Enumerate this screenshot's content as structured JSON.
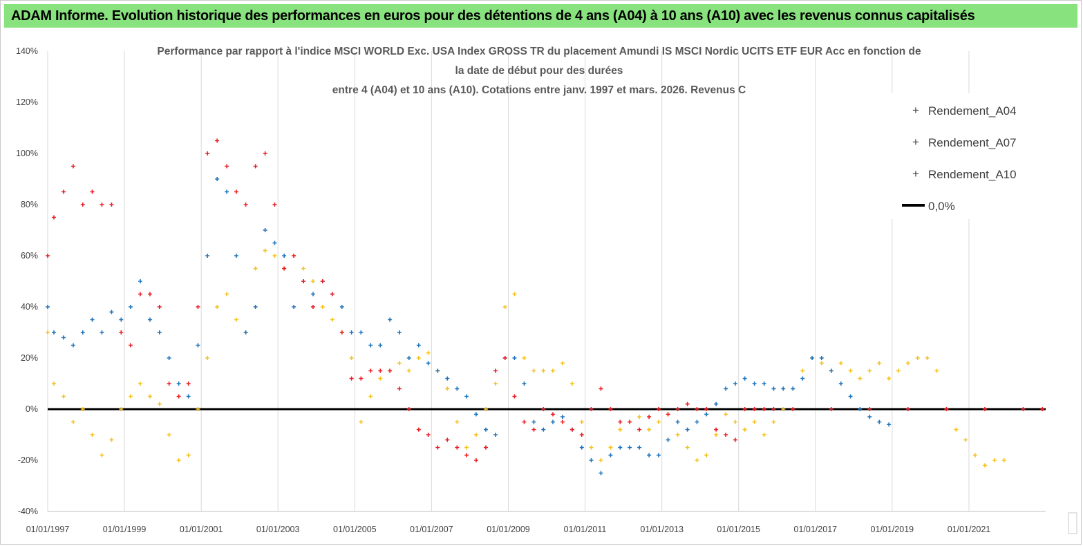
{
  "header": {
    "title": "ADAM Informe. Evolution historique des performances en euros pour des détentions de 4 ans (A04) à 10 ans (A10) avec les revenus connus capitalisés"
  },
  "colors": {
    "banner": "#88e27e",
    "A04": "#f6c21b",
    "A07": "#1e74bc",
    "A10": "#ee1c24",
    "zero_line": "#000000",
    "grid": "#d9d9d9"
  },
  "chart_data": {
    "type": "scatter",
    "title_lines": [
      "Performance par rapport à l'indice MSCI WORLD Exc. USA Index GROSS TR  du placement Amundi IS MSCI Nordic UCITS ETF EUR Acc en fonction de",
      "la date de début pour des durées",
      "entre 4 (A04) et 10 ans (A10). Cotations entre janv. 1997 et mars. 2026. Revenus C"
    ],
    "xlabel": "",
    "ylabel": "",
    "x_range": [
      "1997-01-01",
      "2023-01-01"
    ],
    "x_ticks": [
      "01/01/1997",
      "01/01/1999",
      "01/01/2001",
      "01/01/2003",
      "01/01/2005",
      "01/01/2007",
      "01/01/2009",
      "01/01/2011",
      "01/01/2013",
      "01/01/2015",
      "01/01/2017",
      "01/01/2019",
      "01/01/2021"
    ],
    "ylim": [
      -40,
      140
    ],
    "y_ticks": [
      "-40%",
      "-20%",
      "0%",
      "20%",
      "40%",
      "60%",
      "80%",
      "100%",
      "120%",
      "140%"
    ],
    "grid": "vertical lines only",
    "legend_position": "top-right",
    "marker": "+",
    "series": [
      {
        "name": "Rendement_A04",
        "points": [
          [
            "1997-01-01",
            30
          ],
          [
            "1997-03-01",
            10
          ],
          [
            "1997-06-01",
            5
          ],
          [
            "1997-09-01",
            -5
          ],
          [
            "1997-12-01",
            0
          ],
          [
            "1998-03-01",
            -10
          ],
          [
            "1998-06-01",
            -18
          ],
          [
            "1998-09-01",
            -12
          ],
          [
            "1998-12-01",
            0
          ],
          [
            "1999-03-01",
            5
          ],
          [
            "1999-06-01",
            10
          ],
          [
            "1999-09-01",
            5
          ],
          [
            "1999-12-01",
            2
          ],
          [
            "2000-03-01",
            -10
          ],
          [
            "2000-06-01",
            -20
          ],
          [
            "2000-09-01",
            -18
          ],
          [
            "2000-12-01",
            0
          ],
          [
            "2001-03-01",
            20
          ],
          [
            "2001-06-01",
            40
          ],
          [
            "2001-09-01",
            45
          ],
          [
            "2001-12-01",
            35
          ],
          [
            "2002-03-01",
            30
          ],
          [
            "2002-06-01",
            55
          ],
          [
            "2002-09-01",
            62
          ],
          [
            "2002-12-01",
            60
          ],
          [
            "2003-03-01",
            55
          ],
          [
            "2003-06-01",
            60
          ],
          [
            "2003-09-01",
            55
          ],
          [
            "2003-12-01",
            50
          ],
          [
            "2004-03-01",
            40
          ],
          [
            "2004-06-01",
            35
          ],
          [
            "2004-09-01",
            30
          ],
          [
            "2004-12-01",
            20
          ],
          [
            "2005-03-01",
            -5
          ],
          [
            "2005-06-01",
            5
          ],
          [
            "2005-09-01",
            12
          ],
          [
            "2005-12-01",
            15
          ],
          [
            "2006-03-01",
            18
          ],
          [
            "2006-06-01",
            15
          ],
          [
            "2006-09-01",
            20
          ],
          [
            "2006-12-01",
            22
          ],
          [
            "2007-03-01",
            15
          ],
          [
            "2007-06-01",
            8
          ],
          [
            "2007-09-01",
            -5
          ],
          [
            "2007-12-01",
            -15
          ],
          [
            "2008-03-01",
            -10
          ],
          [
            "2008-06-01",
            0
          ],
          [
            "2008-09-01",
            10
          ],
          [
            "2008-12-01",
            40
          ],
          [
            "2009-03-01",
            45
          ],
          [
            "2009-06-01",
            20
          ],
          [
            "2009-09-01",
            15
          ],
          [
            "2009-12-01",
            15
          ],
          [
            "2010-03-01",
            15
          ],
          [
            "2010-06-01",
            18
          ],
          [
            "2010-09-01",
            10
          ],
          [
            "2010-12-01",
            -5
          ],
          [
            "2011-03-01",
            -15
          ],
          [
            "2011-06-01",
            -20
          ],
          [
            "2011-09-01",
            -15
          ],
          [
            "2011-12-01",
            -8
          ],
          [
            "2012-03-01",
            -5
          ],
          [
            "2012-06-01",
            -3
          ],
          [
            "2012-09-01",
            -8
          ],
          [
            "2012-12-01",
            -5
          ],
          [
            "2013-03-01",
            -2
          ],
          [
            "2013-06-01",
            -10
          ],
          [
            "2013-09-01",
            -15
          ],
          [
            "2013-12-01",
            -20
          ],
          [
            "2014-03-01",
            -18
          ],
          [
            "2014-06-01",
            -10
          ],
          [
            "2014-09-01",
            -2
          ],
          [
            "2014-12-01",
            -5
          ],
          [
            "2015-03-01",
            -8
          ],
          [
            "2015-06-01",
            -5
          ],
          [
            "2015-09-01",
            -10
          ],
          [
            "2015-12-01",
            -5
          ],
          [
            "2016-03-01",
            0
          ],
          [
            "2016-06-01",
            8
          ],
          [
            "2016-09-01",
            15
          ],
          [
            "2016-12-01",
            20
          ],
          [
            "2017-03-01",
            18
          ],
          [
            "2017-06-01",
            15
          ],
          [
            "2017-09-01",
            18
          ],
          [
            "2017-12-01",
            15
          ],
          [
            "2018-03-01",
            12
          ],
          [
            "2018-06-01",
            15
          ],
          [
            "2018-09-01",
            18
          ],
          [
            "2018-12-01",
            12
          ],
          [
            "2019-03-01",
            15
          ],
          [
            "2019-06-01",
            18
          ],
          [
            "2019-09-01",
            20
          ],
          [
            "2019-12-01",
            20
          ],
          [
            "2020-03-01",
            15
          ],
          [
            "2020-06-01",
            0
          ],
          [
            "2020-09-01",
            -8
          ],
          [
            "2020-12-01",
            -12
          ],
          [
            "2021-03-01",
            -18
          ],
          [
            "2021-06-01",
            -22
          ],
          [
            "2021-09-01",
            -20
          ],
          [
            "2021-12-01",
            -20
          ]
        ]
      },
      {
        "name": "Rendement_A07",
        "points": [
          [
            "1997-01-01",
            40
          ],
          [
            "1997-03-01",
            30
          ],
          [
            "1997-06-01",
            28
          ],
          [
            "1997-09-01",
            25
          ],
          [
            "1997-12-01",
            30
          ],
          [
            "1998-03-01",
            35
          ],
          [
            "1998-06-01",
            30
          ],
          [
            "1998-09-01",
            38
          ],
          [
            "1998-12-01",
            35
          ],
          [
            "1999-03-01",
            40
          ],
          [
            "1999-06-01",
            50
          ],
          [
            "1999-09-01",
            35
          ],
          [
            "1999-12-01",
            30
          ],
          [
            "2000-03-01",
            20
          ],
          [
            "2000-06-01",
            10
          ],
          [
            "2000-09-01",
            5
          ],
          [
            "2000-12-01",
            25
          ],
          [
            "2001-03-01",
            60
          ],
          [
            "2001-06-01",
            90
          ],
          [
            "2001-09-01",
            85
          ],
          [
            "2001-12-01",
            60
          ],
          [
            "2002-03-01",
            30
          ],
          [
            "2002-06-01",
            40
          ],
          [
            "2002-09-01",
            70
          ],
          [
            "2002-12-01",
            65
          ],
          [
            "2003-03-01",
            60
          ],
          [
            "2003-06-01",
            40
          ],
          [
            "2003-09-01",
            50
          ],
          [
            "2003-12-01",
            45
          ],
          [
            "2004-03-01",
            50
          ],
          [
            "2004-06-01",
            45
          ],
          [
            "2004-09-01",
            40
          ],
          [
            "2004-12-01",
            30
          ],
          [
            "2005-03-01",
            30
          ],
          [
            "2005-06-01",
            25
          ],
          [
            "2005-09-01",
            25
          ],
          [
            "2005-12-01",
            35
          ],
          [
            "2006-03-01",
            30
          ],
          [
            "2006-06-01",
            20
          ],
          [
            "2006-09-01",
            25
          ],
          [
            "2006-12-01",
            18
          ],
          [
            "2007-03-01",
            15
          ],
          [
            "2007-06-01",
            12
          ],
          [
            "2007-09-01",
            8
          ],
          [
            "2007-12-01",
            5
          ],
          [
            "2008-03-01",
            -2
          ],
          [
            "2008-06-01",
            -8
          ],
          [
            "2008-09-01",
            -10
          ],
          [
            "2008-12-01",
            20
          ],
          [
            "2009-03-01",
            20
          ],
          [
            "2009-06-01",
            10
          ],
          [
            "2009-09-01",
            -5
          ],
          [
            "2009-12-01",
            -8
          ],
          [
            "2010-03-01",
            -5
          ],
          [
            "2010-06-01",
            -3
          ],
          [
            "2010-09-01",
            -8
          ],
          [
            "2010-12-01",
            -15
          ],
          [
            "2011-03-01",
            -20
          ],
          [
            "2011-06-01",
            -25
          ],
          [
            "2011-09-01",
            -18
          ],
          [
            "2011-12-01",
            -15
          ],
          [
            "2012-03-01",
            -15
          ],
          [
            "2012-06-01",
            -15
          ],
          [
            "2012-09-01",
            -18
          ],
          [
            "2012-12-01",
            -18
          ],
          [
            "2013-03-01",
            -12
          ],
          [
            "2013-06-01",
            -5
          ],
          [
            "2013-09-01",
            -8
          ],
          [
            "2013-12-01",
            -5
          ],
          [
            "2014-03-01",
            -2
          ],
          [
            "2014-06-01",
            2
          ],
          [
            "2014-09-01",
            8
          ],
          [
            "2014-12-01",
            10
          ],
          [
            "2015-03-01",
            12
          ],
          [
            "2015-06-01",
            10
          ],
          [
            "2015-09-01",
            10
          ],
          [
            "2015-12-01",
            8
          ],
          [
            "2016-03-01",
            8
          ],
          [
            "2016-06-01",
            8
          ],
          [
            "2016-09-01",
            12
          ],
          [
            "2016-12-01",
            20
          ],
          [
            "2017-03-01",
            20
          ],
          [
            "2017-06-01",
            15
          ],
          [
            "2017-09-01",
            10
          ],
          [
            "2017-12-01",
            5
          ],
          [
            "2018-03-01",
            0
          ],
          [
            "2018-06-01",
            -3
          ],
          [
            "2018-09-01",
            -5
          ],
          [
            "2018-12-01",
            -6
          ]
        ]
      },
      {
        "name": "Rendement_A10",
        "points": [
          [
            "1997-01-01",
            60
          ],
          [
            "1997-03-01",
            75
          ],
          [
            "1997-06-01",
            85
          ],
          [
            "1997-09-01",
            95
          ],
          [
            "1997-12-01",
            80
          ],
          [
            "1998-03-01",
            85
          ],
          [
            "1998-06-01",
            80
          ],
          [
            "1998-09-01",
            80
          ],
          [
            "1998-12-01",
            30
          ],
          [
            "1999-03-01",
            25
          ],
          [
            "1999-06-01",
            45
          ],
          [
            "1999-09-01",
            45
          ],
          [
            "1999-12-01",
            40
          ],
          [
            "2000-03-01",
            10
          ],
          [
            "2000-06-01",
            5
          ],
          [
            "2000-09-01",
            10
          ],
          [
            "2000-12-01",
            40
          ],
          [
            "2001-03-01",
            100
          ],
          [
            "2001-06-01",
            105
          ],
          [
            "2001-09-01",
            95
          ],
          [
            "2001-12-01",
            85
          ],
          [
            "2002-03-01",
            80
          ],
          [
            "2002-06-01",
            95
          ],
          [
            "2002-09-01",
            100
          ],
          [
            "2002-12-01",
            80
          ],
          [
            "2003-03-01",
            55
          ],
          [
            "2003-06-01",
            60
          ],
          [
            "2003-09-01",
            50
          ],
          [
            "2003-12-01",
            40
          ],
          [
            "2004-03-01",
            50
          ],
          [
            "2004-06-01",
            45
          ],
          [
            "2004-09-01",
            30
          ],
          [
            "2004-12-01",
            12
          ],
          [
            "2005-03-01",
            12
          ],
          [
            "2005-06-01",
            15
          ],
          [
            "2005-09-01",
            15
          ],
          [
            "2005-12-01",
            15
          ],
          [
            "2006-03-01",
            8
          ],
          [
            "2006-06-01",
            0
          ],
          [
            "2006-09-01",
            -8
          ],
          [
            "2006-12-01",
            -10
          ],
          [
            "2007-03-01",
            -15
          ],
          [
            "2007-06-01",
            -12
          ],
          [
            "2007-09-01",
            -15
          ],
          [
            "2007-12-01",
            -18
          ],
          [
            "2008-03-01",
            -20
          ],
          [
            "2008-06-01",
            -15
          ],
          [
            "2008-09-01",
            15
          ],
          [
            "2008-12-01",
            20
          ],
          [
            "2009-03-01",
            5
          ],
          [
            "2009-06-01",
            -5
          ],
          [
            "2009-09-01",
            -8
          ],
          [
            "2009-12-01",
            0
          ],
          [
            "2010-03-01",
            -2
          ],
          [
            "2010-06-01",
            -5
          ],
          [
            "2010-09-01",
            -8
          ],
          [
            "2010-12-01",
            -10
          ],
          [
            "2011-03-01",
            0
          ],
          [
            "2011-06-01",
            8
          ],
          [
            "2011-09-01",
            0
          ],
          [
            "2011-12-01",
            -5
          ],
          [
            "2012-03-01",
            -5
          ],
          [
            "2012-06-01",
            -8
          ],
          [
            "2012-09-01",
            -3
          ],
          [
            "2012-12-01",
            0
          ],
          [
            "2013-03-01",
            -2
          ],
          [
            "2013-06-01",
            0
          ],
          [
            "2013-09-01",
            2
          ],
          [
            "2013-12-01",
            0
          ],
          [
            "2014-03-01",
            0
          ],
          [
            "2014-06-01",
            -8
          ],
          [
            "2014-09-01",
            -10
          ],
          [
            "2014-12-01",
            -12
          ],
          [
            "2015-03-01",
            0
          ],
          [
            "2015-06-01",
            0
          ],
          [
            "2015-09-01",
            0
          ],
          [
            "2015-12-01",
            0
          ],
          [
            "2016-06-01",
            0
          ],
          [
            "2017-06-01",
            0
          ],
          [
            "2018-06-01",
            0
          ],
          [
            "2019-06-01",
            0
          ],
          [
            "2020-06-01",
            0
          ],
          [
            "2021-06-01",
            0
          ],
          [
            "2022-06-01",
            0
          ],
          [
            "2022-12-01",
            0
          ]
        ]
      },
      {
        "name": "0,0%",
        "type": "line",
        "points": [
          [
            "1997-01-01",
            0
          ],
          [
            "2023-01-01",
            0
          ]
        ]
      }
    ]
  }
}
